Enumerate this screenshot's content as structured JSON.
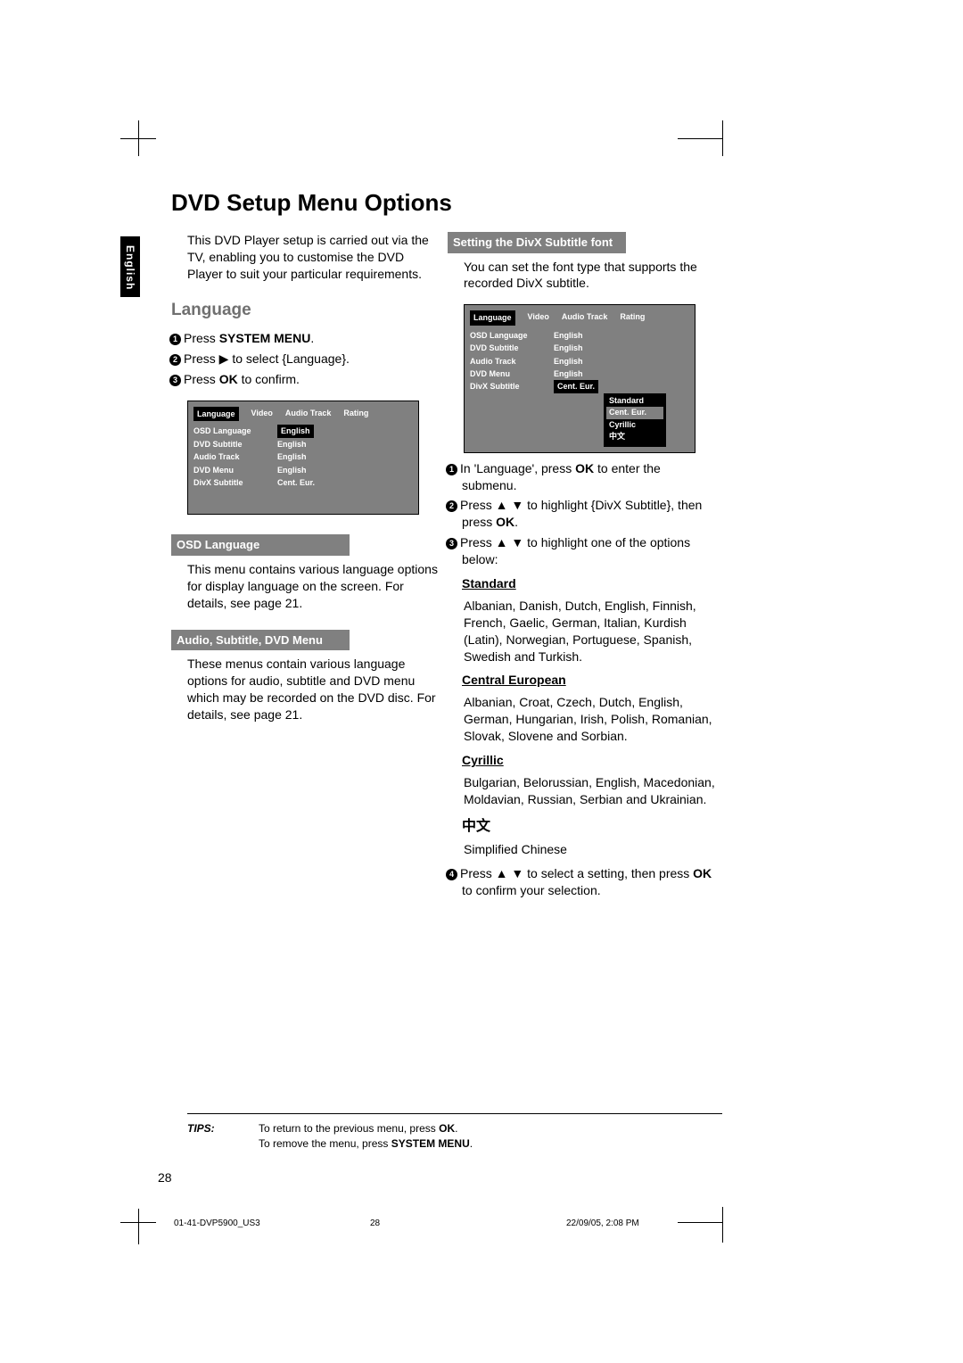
{
  "sidebar_label": "English",
  "title": "DVD Setup Menu Options",
  "intro": "This DVD Player setup is carried out via the TV, enabling you to customise the DVD Player to suit your particular requirements.",
  "section_language": "Language",
  "steps_left": [
    {
      "n": "1",
      "text_a": "Press ",
      "bold": "SYSTEM MENU",
      "text_b": "."
    },
    {
      "n": "2",
      "text_a": "Press ▶ to select {Language}."
    },
    {
      "n": "3",
      "text_a": "Press ",
      "bold": "OK",
      "text_b": " to confirm."
    }
  ],
  "menu1": {
    "tabs": [
      "Language",
      "Video",
      "Audio Track",
      "Rating"
    ],
    "active_tab": 0,
    "rows": [
      {
        "k": "OSD Language",
        "v": "English",
        "active": true
      },
      {
        "k": "DVD Subtitle",
        "v": "English"
      },
      {
        "k": "Audio Track",
        "v": "English"
      },
      {
        "k": "DVD Menu",
        "v": "English"
      },
      {
        "k": "DivX Subtitle",
        "v": "Cent. Eur."
      }
    ]
  },
  "sub_osd": "OSD Language",
  "osd_text": "This menu contains various language options for display language on the screen.  For details, see page 21.",
  "sub_audio": "Audio, Subtitle, DVD Menu",
  "audio_text": "These menus contain various language options for audio, subtitle and DVD menu which may be recorded on the DVD disc. For details, see page 21.",
  "sub_divx": "Setting the DivX Subtitle font",
  "divx_intro": "You can set the font type that supports the recorded DivX subtitle.",
  "menu2": {
    "tabs": [
      "Language",
      "Video",
      "Audio Track",
      "Rating"
    ],
    "active_tab": 0,
    "rows": [
      {
        "k": "OSD Language",
        "v": "English"
      },
      {
        "k": "DVD Subtitle",
        "v": "English"
      },
      {
        "k": "Audio Track",
        "v": "English"
      },
      {
        "k": "DVD Menu",
        "v": "English"
      },
      {
        "k": "DivX Subtitle",
        "v": "Cent. Eur.",
        "active": true
      }
    ],
    "submenu": [
      "Standard",
      "Cent. Eur.",
      "Cyrillic",
      "中文"
    ],
    "submenu_sel": 1
  },
  "steps_right": [
    {
      "n": "1",
      "text_a": "In 'Language', press ",
      "bold": "OK",
      "text_b": " to enter the submenu."
    },
    {
      "n": "2",
      "text_a": "Press ▲ ▼ to highlight {DivX Subtitle}, then press ",
      "bold": "OK",
      "text_b": "."
    },
    {
      "n": "3",
      "text_a": "Press ▲ ▼ to highlight one of the options below:"
    }
  ],
  "opt_standard_t": "Standard",
  "opt_standard_b": "Albanian, Danish, Dutch, English, Finnish, French, Gaelic, German, Italian, Kurdish (Latin), Norwegian, Portuguese, Spanish, Swedish and Turkish.",
  "opt_central_t": "Central European",
  "opt_central_b": "Albanian, Croat, Czech, Dutch, English, German, Hungarian, Irish, Polish, Romanian, Slovak, Slovene and Sorbian.",
  "opt_cyr_t": "Cyrillic",
  "opt_cyr_b": "Bulgarian, Belorussian, English, Macedonian, Moldavian, Russian, Serbian and Ukrainian.",
  "opt_cn_t": "中文",
  "opt_cn_b": "Simplified Chinese",
  "step4": {
    "n": "4",
    "text_a": "Press ▲ ▼ to select a setting, then press ",
    "bold": "OK",
    "text_b": " to confirm your selection."
  },
  "tips_label": "TIPS:",
  "tips_line1_a": "To return to the previous menu, press ",
  "tips_line1_b": "OK",
  "tips_line1_c": ".",
  "tips_line2_a": "To remove the menu, press ",
  "tips_line2_b": "SYSTEM MENU",
  "tips_line2_c": ".",
  "page_number": "28",
  "footer": {
    "file": "01-41-DVP5900_US3",
    "page": "28",
    "date": "22/09/05, 2:08 PM"
  }
}
